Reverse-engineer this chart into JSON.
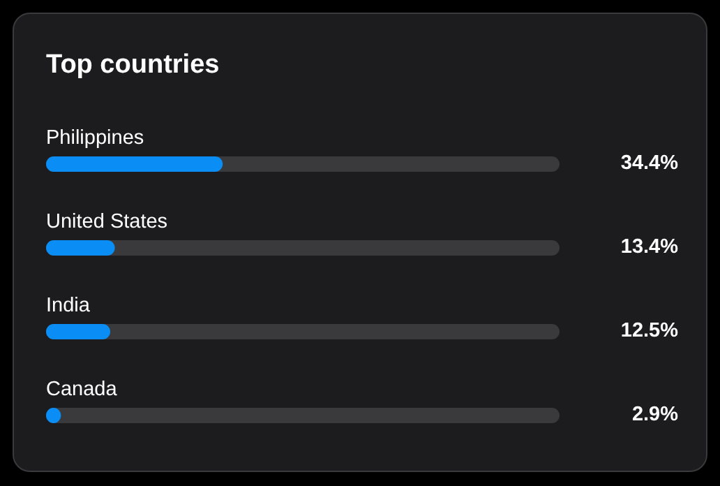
{
  "chart_data": {
    "type": "bar",
    "orientation": "horizontal",
    "title": "Top countries",
    "categories": [
      "Philippines",
      "United States",
      "India",
      "Canada"
    ],
    "values": [
      34.4,
      13.4,
      12.5,
      2.9
    ],
    "value_labels": [
      "34.4%",
      "13.4%",
      "12.5%",
      "2.9%"
    ],
    "color": "#0a8df5",
    "xlim": [
      0,
      100
    ]
  }
}
